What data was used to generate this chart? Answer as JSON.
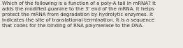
{
  "lines": [
    "Which of the following is a function of a poly-A tail in mRNA? It",
    "adds the modified guanine to the 3’ end of the mRNA. It helps",
    "protect the mRNA from degradation by hydrolytic enzymes. It",
    "indicates the site of translational termination. It is a sequence",
    "that codes for the binding of RNA polymerase to the DNA."
  ],
  "background_color": "#edeae4",
  "text_color": "#2b2b2b",
  "font_size": 5.05,
  "fig_width": 2.62,
  "fig_height": 0.69,
  "dpi": 100
}
